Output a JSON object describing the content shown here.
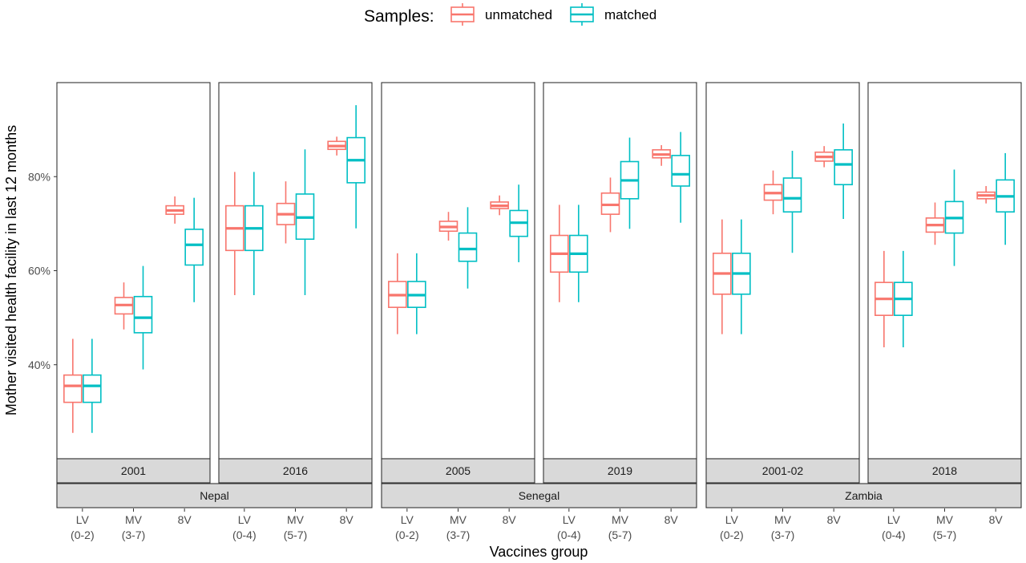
{
  "legend": {
    "title": "Samples:",
    "entries": [
      {
        "name": "unmatched",
        "color": "#F8766D"
      },
      {
        "name": "matched",
        "color": "#00BFC4"
      }
    ]
  },
  "chart_data": {
    "type": "boxplot",
    "xlabel": "Vaccines group",
    "ylabel": "Mother visited health facility in last 12 months",
    "ylim": [
      0.2,
      1.0
    ],
    "yticks": [
      0.4,
      0.6,
      0.8
    ],
    "ytick_labels": [
      "40%",
      "60%",
      "80%"
    ],
    "grid": true,
    "legend_position": "top",
    "series": [
      {
        "name": "unmatched",
        "color": "#F8766D"
      },
      {
        "name": "matched",
        "color": "#00BFC4"
      }
    ],
    "panels": [
      {
        "country": "Nepal",
        "year": "2001",
        "groups": [
          {
            "label": "LV\n(0-2)",
            "unmatched": {
              "min": 0.255,
              "q1": 0.32,
              "median": 0.355,
              "q3": 0.378,
              "max": 0.455
            },
            "matched": {
              "min": 0.255,
              "q1": 0.32,
              "median": 0.355,
              "q3": 0.378,
              "max": 0.455
            }
          },
          {
            "label": "MV\n(3-7)",
            "unmatched": {
              "min": 0.475,
              "q1": 0.508,
              "median": 0.527,
              "q3": 0.543,
              "max": 0.575
            },
            "matched": {
              "min": 0.39,
              "q1": 0.468,
              "median": 0.5,
              "q3": 0.545,
              "max": 0.61
            }
          },
          {
            "label": "8V",
            "unmatched": {
              "min": 0.7,
              "q1": 0.72,
              "median": 0.728,
              "q3": 0.738,
              "max": 0.758
            },
            "matched": {
              "min": 0.533,
              "q1": 0.612,
              "median": 0.655,
              "q3": 0.688,
              "max": 0.755
            }
          }
        ]
      },
      {
        "country": "Nepal",
        "year": "2016",
        "groups": [
          {
            "label": "LV\n(0-4)",
            "unmatched": {
              "min": 0.548,
              "q1": 0.643,
              "median": 0.69,
              "q3": 0.738,
              "max": 0.81
            },
            "matched": {
              "min": 0.548,
              "q1": 0.643,
              "median": 0.69,
              "q3": 0.738,
              "max": 0.81
            }
          },
          {
            "label": "MV\n(5-7)",
            "unmatched": {
              "min": 0.658,
              "q1": 0.698,
              "median": 0.72,
              "q3": 0.743,
              "max": 0.79
            },
            "matched": {
              "min": 0.548,
              "q1": 0.667,
              "median": 0.713,
              "q3": 0.763,
              "max": 0.858
            }
          },
          {
            "label": "8V",
            "unmatched": {
              "min": 0.845,
              "q1": 0.858,
              "median": 0.865,
              "q3": 0.875,
              "max": 0.885
            },
            "matched": {
              "min": 0.69,
              "q1": 0.787,
              "median": 0.835,
              "q3": 0.883,
              "max": 0.952
            }
          }
        ]
      },
      {
        "country": "Senegal",
        "year": "2005",
        "groups": [
          {
            "label": "LV\n(0-2)",
            "unmatched": {
              "min": 0.465,
              "q1": 0.522,
              "median": 0.548,
              "q3": 0.577,
              "max": 0.637
            },
            "matched": {
              "min": 0.465,
              "q1": 0.522,
              "median": 0.548,
              "q3": 0.577,
              "max": 0.637
            }
          },
          {
            "label": "MV\n(3-7)",
            "unmatched": {
              "min": 0.664,
              "q1": 0.684,
              "median": 0.693,
              "q3": 0.705,
              "max": 0.725
            },
            "matched": {
              "min": 0.562,
              "q1": 0.62,
              "median": 0.646,
              "q3": 0.68,
              "max": 0.735
            }
          },
          {
            "label": "8V",
            "unmatched": {
              "min": 0.718,
              "q1": 0.732,
              "median": 0.738,
              "q3": 0.746,
              "max": 0.76
            },
            "matched": {
              "min": 0.618,
              "q1": 0.673,
              "median": 0.702,
              "q3": 0.728,
              "max": 0.783
            }
          }
        ]
      },
      {
        "country": "Senegal",
        "year": "2019",
        "groups": [
          {
            "label": "LV\n(0-4)",
            "unmatched": {
              "min": 0.533,
              "q1": 0.597,
              "median": 0.636,
              "q3": 0.675,
              "max": 0.74
            },
            "matched": {
              "min": 0.533,
              "q1": 0.597,
              "median": 0.636,
              "q3": 0.675,
              "max": 0.74
            }
          },
          {
            "label": "MV\n(5-7)",
            "unmatched": {
              "min": 0.682,
              "q1": 0.72,
              "median": 0.74,
              "q3": 0.765,
              "max": 0.798
            },
            "matched": {
              "min": 0.689,
              "q1": 0.753,
              "median": 0.792,
              "q3": 0.832,
              "max": 0.883
            }
          },
          {
            "label": "8V",
            "unmatched": {
              "min": 0.823,
              "q1": 0.84,
              "median": 0.847,
              "q3": 0.857,
              "max": 0.867
            },
            "matched": {
              "min": 0.702,
              "q1": 0.78,
              "median": 0.805,
              "q3": 0.845,
              "max": 0.895
            }
          }
        ]
      },
      {
        "country": "Zambia",
        "year": "2001-02",
        "groups": [
          {
            "label": "LV\n(0-2)",
            "unmatched": {
              "min": 0.465,
              "q1": 0.55,
              "median": 0.594,
              "q3": 0.637,
              "max": 0.709
            },
            "matched": {
              "min": 0.465,
              "q1": 0.55,
              "median": 0.594,
              "q3": 0.637,
              "max": 0.709
            }
          },
          {
            "label": "MV\n(3-7)",
            "unmatched": {
              "min": 0.72,
              "q1": 0.75,
              "median": 0.765,
              "q3": 0.783,
              "max": 0.813
            },
            "matched": {
              "min": 0.638,
              "q1": 0.725,
              "median": 0.754,
              "q3": 0.797,
              "max": 0.855
            }
          },
          {
            "label": "8V",
            "unmatched": {
              "min": 0.82,
              "q1": 0.833,
              "median": 0.842,
              "q3": 0.852,
              "max": 0.865
            },
            "matched": {
              "min": 0.71,
              "q1": 0.783,
              "median": 0.826,
              "q3": 0.857,
              "max": 0.913
            }
          }
        ]
      },
      {
        "country": "Zambia",
        "year": "2018",
        "groups": [
          {
            "label": "LV\n(0-4)",
            "unmatched": {
              "min": 0.437,
              "q1": 0.505,
              "median": 0.54,
              "q3": 0.575,
              "max": 0.642
            },
            "matched": {
              "min": 0.437,
              "q1": 0.505,
              "median": 0.54,
              "q3": 0.575,
              "max": 0.642
            }
          },
          {
            "label": "MV\n(5-7)",
            "unmatched": {
              "min": 0.655,
              "q1": 0.682,
              "median": 0.697,
              "q3": 0.712,
              "max": 0.745
            },
            "matched": {
              "min": 0.61,
              "q1": 0.68,
              "median": 0.712,
              "q3": 0.747,
              "max": 0.815
            }
          },
          {
            "label": "8V",
            "unmatched": {
              "min": 0.743,
              "q1": 0.753,
              "median": 0.76,
              "q3": 0.767,
              "max": 0.78
            },
            "matched": {
              "min": 0.655,
              "q1": 0.725,
              "median": 0.758,
              "q3": 0.793,
              "max": 0.85
            }
          }
        ]
      }
    ]
  }
}
